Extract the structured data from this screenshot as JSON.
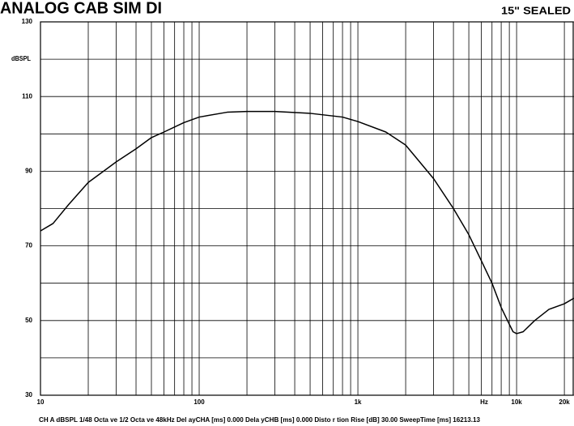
{
  "chart_data": {
    "type": "line",
    "title": "ANALOG CAB SIM DI",
    "subtitle": "15\" SEALED",
    "y_label": "dBSPL",
    "x_label": "Hz",
    "footer": "CH A  dBSPL   1/48 Octa ve   1/2 Octa ve   48kHz   Del ayCHA [ms] 0.000   Dela yCHB [ms] 0.000   Disto r tion  Rise [dB] 30.00   SweepTime [ms] 16213.13",
    "log_x": true,
    "x": [
      10,
      12,
      15,
      20,
      30,
      40,
      50,
      60,
      80,
      100,
      150,
      200,
      300,
      500,
      800,
      1000,
      1500,
      2000,
      3000,
      4000,
      5000,
      6000,
      7000,
      8000,
      9000,
      9500,
      10000,
      11000,
      13000,
      16000,
      20000,
      23000
    ],
    "values": [
      74,
      76,
      81,
      87,
      92.5,
      96,
      99,
      100.5,
      103,
      104.5,
      105.8,
      106,
      106,
      105.5,
      104.5,
      103.3,
      100.5,
      97,
      88,
      80,
      73,
      66,
      60,
      53.5,
      49,
      47,
      46.5,
      47,
      50,
      53,
      54.5,
      56
    ],
    "color": "#000000",
    "xlim": [
      10,
      23000
    ],
    "ylim": [
      30,
      130
    ],
    "xticks": [
      10,
      100,
      {
        "value": 1000,
        "label": "1k"
      },
      {
        "value": 10000,
        "label": "10k"
      },
      {
        "value": 20000,
        "label": "20k"
      }
    ],
    "xgrid": [
      20,
      30,
      40,
      50,
      60,
      70,
      80,
      90,
      200,
      300,
      400,
      500,
      600,
      700,
      800,
      900,
      2000,
      3000,
      4000,
      5000,
      6000,
      7000,
      8000,
      9000
    ],
    "yticks": [
      30,
      50,
      70,
      90,
      110,
      130
    ],
    "ygrid": [
      40,
      60,
      80,
      100,
      120
    ],
    "grid": true
  }
}
